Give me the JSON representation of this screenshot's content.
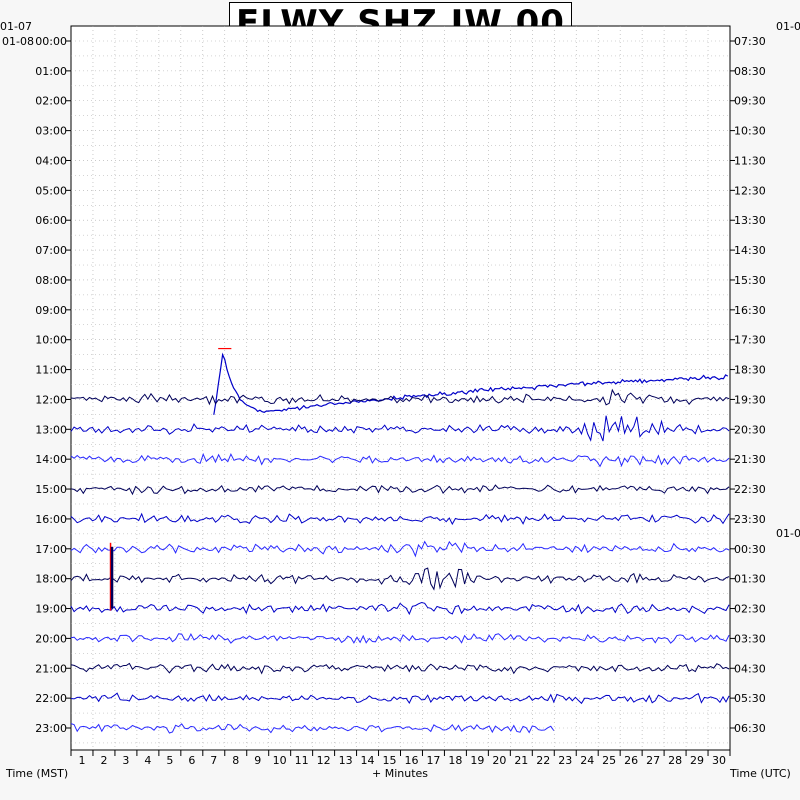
{
  "chart_data": {
    "type": "line",
    "title": "FLWY SHZ IW 00",
    "xlabel": "+ Minutes",
    "ylabel_left": "Time (MST)",
    "ylabel_right": "Time (UTC)",
    "xlim": [
      0,
      30
    ],
    "x_ticks": [
      "1",
      "2",
      "3",
      "4",
      "5",
      "6",
      "7",
      "8",
      "9",
      "10",
      "11",
      "12",
      "13",
      "14",
      "15",
      "16",
      "17",
      "18",
      "19",
      "20",
      "21",
      "22",
      "23",
      "24",
      "25",
      "26",
      "27",
      "28",
      "29",
      "30"
    ],
    "left_date_labels": [
      "01-07",
      "01-08"
    ],
    "right_date_labels": [
      "01-0",
      "01-0"
    ],
    "left_hours": [
      "00:00",
      "01:00",
      "02:00",
      "03:00",
      "04:00",
      "05:00",
      "06:00",
      "07:00",
      "08:00",
      "09:00",
      "10:00",
      "11:00",
      "12:00",
      "13:00",
      "14:00",
      "15:00",
      "16:00",
      "17:00",
      "18:00",
      "19:00",
      "20:00",
      "21:00",
      "22:00",
      "23:00"
    ],
    "right_hours": [
      "07:30",
      "08:30",
      "09:30",
      "10:30",
      "11:30",
      "12:30",
      "13:30",
      "14:30",
      "15:30",
      "16:30",
      "17:30",
      "18:30",
      "19:30",
      "20:30",
      "21:30",
      "22:30",
      "23:30",
      "00:30",
      "01:30",
      "02:30",
      "03:30",
      "04:30",
      "05:30",
      "06:30"
    ],
    "trace_colors": [
      "#00005a",
      "#0000c8",
      "#2a2aff"
    ],
    "clip_color": "#ff0000",
    "grid": true,
    "traces_start_hour": 12,
    "traces_end": {
      "hour": 23,
      "minute": 22
    },
    "events": [
      {
        "label": "offset excursion",
        "hour": 11,
        "minute_start": 6.5,
        "minute_end": 30
      },
      {
        "label": "burst",
        "hour": 13,
        "minute": 25
      },
      {
        "label": "burst",
        "hour": 18,
        "minute": 16.5
      },
      {
        "label": "spike",
        "hour": 17,
        "minute": 1.8
      }
    ]
  },
  "colors": {
    "background": "#f7f7f7",
    "plot_background": "#ffffff",
    "grid": "#aaaaaa"
  }
}
